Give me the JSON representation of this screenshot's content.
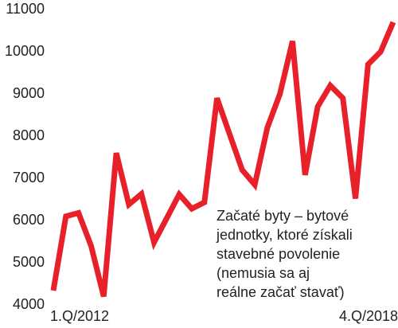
{
  "chart_data": {
    "type": "line",
    "categories": [
      "1.Q/2012",
      null,
      null,
      null,
      null,
      null,
      null,
      null,
      null,
      null,
      null,
      null,
      null,
      null,
      null,
      null,
      null,
      null,
      null,
      null,
      null,
      null,
      null,
      null,
      null,
      null,
      null,
      "4.Q/2018"
    ],
    "series": [
      {
        "name": null,
        "color": "#e8202a",
        "values": [
          4340,
          6100,
          6180,
          5400,
          4200,
          7600,
          6380,
          6630,
          5480,
          6050,
          6620,
          6280,
          6430,
          8900,
          8050,
          7200,
          6850,
          8200,
          9000,
          10250,
          7080,
          8700,
          9200,
          8900,
          6520,
          9700,
          10000,
          10700
        ]
      }
    ],
    "ylim": [
      4000,
      11000
    ],
    "yticks": [
      4000,
      5000,
      6000,
      7000,
      8000,
      9000,
      10000,
      11000
    ],
    "grid": false,
    "annotation": [
      "Začaté byty – bytové",
      "jednotky, ktoré získali",
      "stavebné povolenie",
      "(nemusia sa aj",
      "reálne začať stavať)"
    ]
  }
}
